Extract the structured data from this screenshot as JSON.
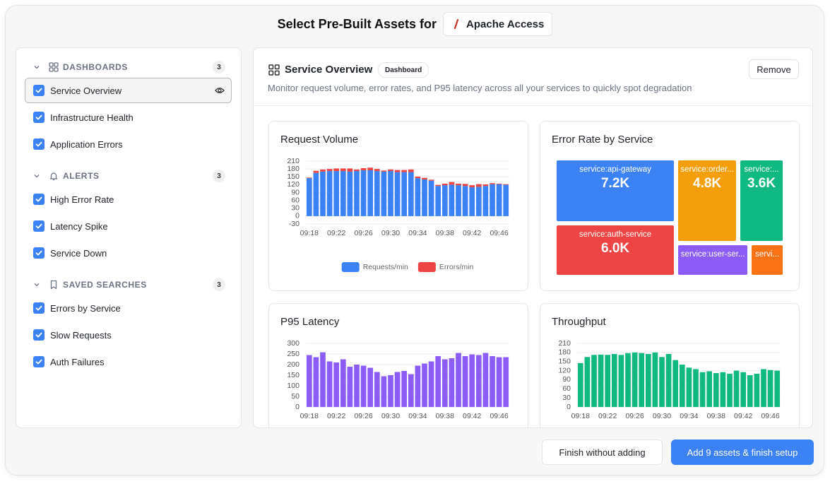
{
  "header": {
    "title": "Select Pre-Built Assets for",
    "source": "Apache Access"
  },
  "sidebar": {
    "sections": [
      {
        "label": "DASHBOARDS",
        "count": 3,
        "items": [
          "Service Overview",
          "Infrastructure Health",
          "Application Errors"
        ]
      },
      {
        "label": "ALERTS",
        "count": 3,
        "items": [
          "High Error Rate",
          "Latency Spike",
          "Service Down"
        ]
      },
      {
        "label": "SAVED SEARCHES",
        "count": 3,
        "items": [
          "Errors by Service",
          "Slow Requests",
          "Auth Failures"
        ]
      }
    ]
  },
  "detail": {
    "title": "Service Overview",
    "badge": "Dashboard",
    "description": "Monitor request volume, error rates, and P95 latency across all your services to quickly spot degradation",
    "remove": "Remove",
    "charts": [
      {
        "type": "bar",
        "stacked": true,
        "title": "Request Volume",
        "categories": [
          "09:18",
          null,
          null,
          null,
          "09:22",
          null,
          null,
          null,
          "09:26",
          null,
          null,
          null,
          "09:30",
          null,
          null,
          null,
          "09:34",
          null,
          null,
          null,
          "09:38",
          null,
          null,
          null,
          "09:42",
          null,
          null,
          null,
          "09:46",
          null
        ],
        "series": [
          {
            "name": "Requests/min",
            "color": "#3b82f6",
            "values": [
              145,
              165,
              170,
              172,
              172,
              172,
              170,
              172,
              175,
              175,
              172,
              170,
              172,
              168,
              168,
              168,
              145,
              140,
              135,
              115,
              118,
              120,
              118,
              115,
              110,
              112,
              115,
              122,
              122,
              120
            ]
          },
          {
            "name": "Errors/min",
            "color": "#ef4444",
            "values": [
              2,
              8,
              8,
              8,
              10,
              10,
              12,
              6,
              8,
              10,
              8,
              4,
              6,
              8,
              8,
              10,
              6,
              6,
              4,
              4,
              6,
              10,
              6,
              8,
              8,
              10,
              6,
              4,
              2,
              2
            ]
          }
        ],
        "ylim": [
          -30,
          210
        ],
        "yticks": [
          -30,
          0,
          30,
          60,
          90,
          120,
          150,
          180,
          210
        ],
        "grid": true,
        "legend": "bottom"
      },
      {
        "type": "treemap",
        "title": "Error Rate by Service",
        "tiles": [
          {
            "name": "service:api-gateway",
            "color": "#3b82f6",
            "value": 7200,
            "value_label": "7.2K"
          },
          {
            "name": "service:order...",
            "color": "#f59e0b",
            "value": 4800,
            "value_label": "4.8K"
          },
          {
            "name": "service:...",
            "color": "#10b981",
            "value": 3600,
            "value_label": "3.6K"
          },
          {
            "name": "service:auth-service",
            "color": "#ef4444",
            "value": 6000,
            "value_label": "6.0K"
          },
          {
            "name": "service:user-ser...",
            "color": "#8b5cf6",
            "value": 2300
          },
          {
            "name": "servi...",
            "color": "#f97316",
            "value": 1100
          }
        ]
      },
      {
        "type": "bar",
        "title": "P95 Latency",
        "categories": [
          "09:18",
          null,
          null,
          null,
          "09:22",
          null,
          null,
          null,
          "09:26",
          null,
          null,
          null,
          "09:30",
          null,
          null,
          null,
          "09:34",
          null,
          null,
          null,
          "09:38",
          null,
          null,
          null,
          "09:42",
          null,
          null,
          null,
          "09:46",
          null
        ],
        "values": [
          245,
          235,
          258,
          215,
          210,
          225,
          190,
          200,
          195,
          185,
          165,
          145,
          150,
          165,
          170,
          155,
          195,
          205,
          215,
          240,
          225,
          230,
          255,
          240,
          248,
          245,
          255,
          240,
          235,
          235
        ],
        "color": "#8b5cf6",
        "ylim": [
          0,
          300
        ],
        "yticks": [
          0,
          50,
          100,
          150,
          200,
          250,
          300
        ],
        "grid": true
      },
      {
        "type": "bar",
        "title": "Throughput",
        "categories": [
          "09:18",
          null,
          null,
          null,
          "09:22",
          null,
          null,
          null,
          "09:26",
          null,
          null,
          null,
          "09:30",
          null,
          null,
          null,
          "09:34",
          null,
          null,
          null,
          "09:38",
          null,
          null,
          null,
          "09:42",
          null,
          null,
          null,
          "09:46",
          null
        ],
        "values": [
          145,
          165,
          172,
          173,
          172,
          175,
          172,
          178,
          180,
          178,
          175,
          180,
          165,
          175,
          155,
          140,
          130,
          125,
          115,
          118,
          112,
          115,
          110,
          120,
          115,
          105,
          110,
          125,
          122,
          120
        ],
        "color": "#10b981",
        "ylim": [
          0,
          210
        ],
        "yticks": [
          0,
          30,
          60,
          90,
          120,
          150,
          180,
          210
        ],
        "grid": true
      }
    ]
  },
  "footer": {
    "secondary": "Finish without adding",
    "primary": "Add 9 assets & finish setup"
  }
}
